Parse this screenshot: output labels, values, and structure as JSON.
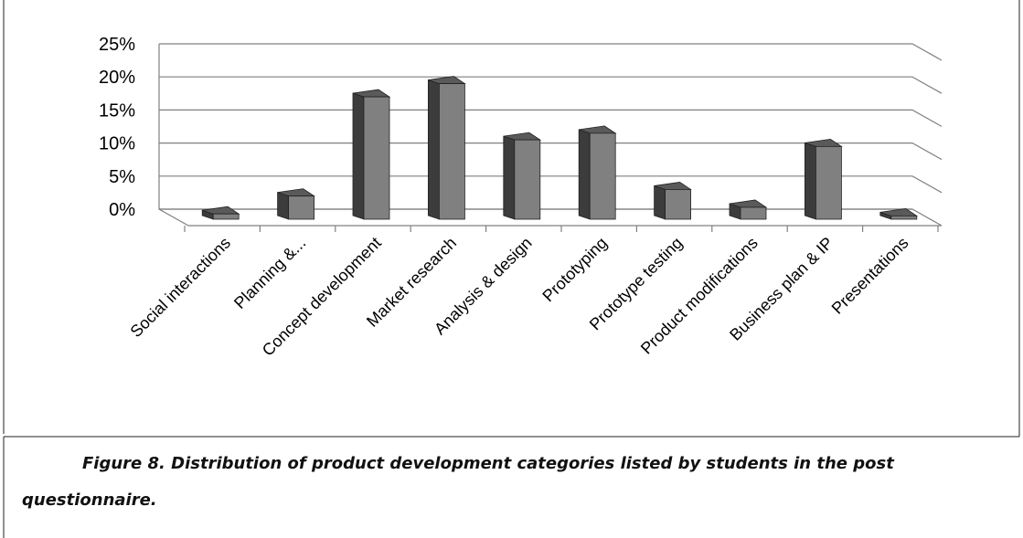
{
  "chart_data": {
    "type": "bar",
    "style": "3d-column",
    "categories": [
      "Social interactions",
      "Planning &...",
      "Concept development",
      "Market research",
      "Analysis & design",
      "Prototyping",
      "Prototype testing",
      "Product modifications",
      "Business plan & IP",
      "Presentations"
    ],
    "values": [
      0.8,
      3.5,
      18.5,
      20.5,
      12.0,
      13.0,
      4.5,
      1.8,
      11.0,
      0.5
    ],
    "y_ticks": [
      "0%",
      "5%",
      "10%",
      "15%",
      "20%",
      "25%"
    ],
    "ylim": [
      0,
      25
    ],
    "grid": true,
    "legend": "none",
    "colors": {
      "bar_front": "#808080",
      "bar_side": "#3c3c3c",
      "bar_top": "#5a5a5a",
      "grid": "#808080",
      "axis": "#808080"
    }
  },
  "caption": "Figure 8. Distribution of product development categories listed by students in the post questionnaire."
}
